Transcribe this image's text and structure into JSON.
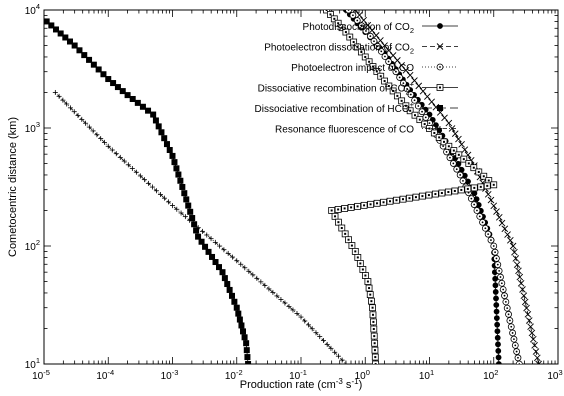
{
  "chart_data": {
    "type": "line",
    "title": "",
    "xlabel": "Production rate (cm-3 s-1)",
    "xlabel_parts": {
      "base": "Production rate (cm",
      "sup1": "-3",
      "mid": " s",
      "sup2": "-1",
      "end": ")"
    },
    "ylabel": "Cometocentric distance (km)",
    "xscale": "log",
    "yscale": "log",
    "xlim": [
      1e-05,
      1000
    ],
    "ylim": [
      10,
      10000
    ],
    "x_tick_labels": [
      {
        "base": "10",
        "exp": "-5"
      },
      {
        "base": "10",
        "exp": "-4"
      },
      {
        "base": "10",
        "exp": "-3"
      },
      {
        "base": "10",
        "exp": "-2"
      },
      {
        "base": "10",
        "exp": "-1"
      },
      {
        "base": "10",
        "exp": "0"
      },
      {
        "base": "10",
        "exp": "1"
      },
      {
        "base": "10",
        "exp": "2"
      },
      {
        "base": "10",
        "exp": "3"
      }
    ],
    "y_tick_labels": [
      {
        "base": "10",
        "exp": "1"
      },
      {
        "base": "10",
        "exp": "2"
      },
      {
        "base": "10",
        "exp": "3"
      },
      {
        "base": "10",
        "exp": "4"
      }
    ],
    "grid": false,
    "legend_position": "top-right",
    "series": [
      {
        "name": "Photodissociation of CO2",
        "label_parts": {
          "text": "Photodissociation of CO",
          "sub": "2",
          "sup": "",
          "tail": ""
        },
        "marker": "filled-circle",
        "dash": "",
        "x": [
          0.5,
          1,
          2,
          5,
          10,
          20,
          50,
          100,
          120
        ],
        "y": [
          10000,
          6500,
          4300,
          2100,
          1300,
          700,
          280,
          100,
          10
        ]
      },
      {
        "name": "Photoelectron dissociation of CO2",
        "label_parts": {
          "text": "Photoelectron dissociation of CO",
          "sub": "2",
          "sup": "",
          "tail": ""
        },
        "marker": "cross",
        "dash": "5,3",
        "x": [
          0.7,
          2,
          5,
          20,
          50,
          200,
          500
        ],
        "y": [
          10000,
          5000,
          2800,
          1100,
          480,
          100,
          10
        ]
      },
      {
        "name": "Photoelectron impact of CO",
        "label_parts": {
          "text": "Photoelectron impact of CO",
          "sub": "",
          "sup": "",
          "tail": ""
        },
        "marker": "dotted-circle",
        "dash": "1,2",
        "x": [
          0.55,
          1.2,
          3,
          10,
          30,
          100,
          250
        ],
        "y": [
          10000,
          6000,
          3000,
          1100,
          400,
          100,
          10
        ]
      },
      {
        "name": "Dissociative recombination of CO2+",
        "label_parts": {
          "text": "Dissociative recombination  of CO",
          "sub": "2",
          "sup": "+",
          "tail": ""
        },
        "marker": "open-square",
        "dash": "",
        "x": [
          0.25,
          0.5,
          1,
          2,
          5,
          20,
          100,
          0.3,
          0.7,
          1.1,
          1.3,
          1.4,
          1.45
        ],
        "y": [
          10000,
          6500,
          4000,
          2500,
          1400,
          700,
          330,
          200,
          90,
          50,
          30,
          15,
          10
        ]
      },
      {
        "name": "Dissociative recombination of HCO+",
        "label_parts": {
          "text": "Dissociative recombination  of HCO",
          "sub": "",
          "sup": "+",
          "tail": ""
        },
        "marker": "filled-square",
        "dash": "10,4",
        "x": [
          1.1e-05,
          3e-05,
          0.0001,
          0.0002,
          0.0005,
          0.001,
          0.0025,
          0.006,
          0.01,
          0.014,
          0.015
        ],
        "y": [
          8000,
          5000,
          2600,
          1900,
          1300,
          580,
          120,
          60,
          30,
          15,
          10
        ]
      },
      {
        "name": "Resonance fluorescence of CO",
        "label_parts": {
          "text": "Resonance fluorescence of CO",
          "sub": "",
          "sup": "",
          "tail": ""
        },
        "marker": "plus",
        "dash": "1,2,4,2",
        "x": [
          1.5e-05,
          0.0001,
          0.001,
          0.01,
          0.1,
          0.5
        ],
        "y": [
          2000,
          700,
          220,
          75,
          25,
          10
        ]
      }
    ]
  }
}
